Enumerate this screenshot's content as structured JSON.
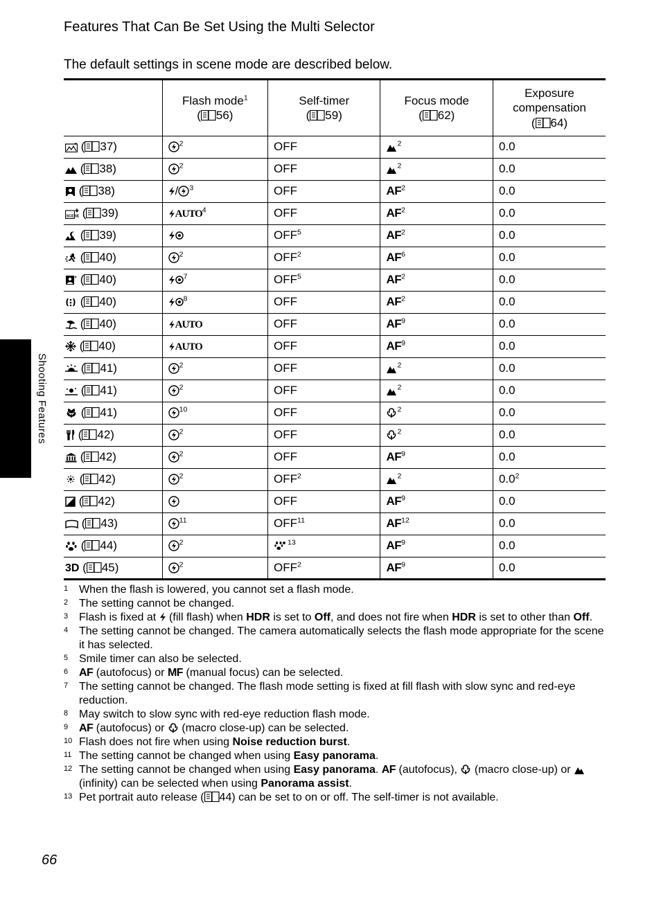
{
  "section_title": "Features That Can Be Set Using the Multi Selector",
  "intro": "The default settings in scene mode are described below.",
  "sidebar_label": "Shooting Features",
  "page_number": "66",
  "page_icon_svg": "<svg class='page-icon' width='22' height='15' viewBox='0 0 22 15'><rect x='0.5' y='0.5' width='10' height='14' fill='none' stroke='#000' stroke-width='1.2'/><rect x='11' y='0.5' width='10' height='14' fill='none' stroke='#000' stroke-width='1.2'/><line x1='3' y1='4' x2='8' y2='4' stroke='#000'/><line x1='3' y1='7' x2='8' y2='7' stroke='#000'/><line x1='3' y1='10' x2='8' y2='10' stroke='#000'/></svg>",
  "icons": {
    "auto_flash_circle": "<svg class='icon' width='16' height='16' viewBox='0 0 16 16'><circle cx='8' cy='8' r='7' fill='none' stroke='#000' stroke-width='1.4'/><path d='M9 3 L5 9 L8 9 L7 13 L11 7 L8 7 Z' fill='#000'/></svg>",
    "bolt": "<svg class='icon' width='10' height='16' viewBox='0 0 10 16'><path d='M7 1 L1 9 L5 9 L3 15 L9 7 L5 7 Z' fill='#000'/></svg>",
    "bolt_auto": "<span class='ser' style='font-size:15px;letter-spacing:-1px;'><svg class='icon' width='10' height='15' viewBox='0 0 10 16'><path d='M7 1 L1 9 L5 9 L3 15 L9 7 L5 7 Z' fill='#000'/></svg>AUTO</span>",
    "bolt_eye": "<svg class='icon' width='22' height='16' viewBox='0 0 22 16'><path d='M7 1 L1 9 L5 9 L3 15 L9 7 L5 7 Z' fill='#000'/><circle cx='16' cy='8' r='5' fill='none' stroke='#000' stroke-width='1.5'/><circle cx='16' cy='8' r='2' fill='#000'/></svg>",
    "mountain": "<svg class='icon' width='16' height='14' viewBox='0 0 16 14'><path d='M1 13 L6 3 L9 8 L11 5 L15 13 Z' fill='#000'/></svg>",
    "macro": "<svg class='icon' width='16' height='16' viewBox='0 0 16 16'><path d='M8 2 C5 2 4 5 5 8 M8 2 C11 2 12 5 11 8 M3 6 C1 10 5 13 8 13 M13 6 C15 10 11 13 8 13 M8 9 L8 15' stroke='#000' stroke-width='1.6' fill='none'/></svg>",
    "clock": "<svg class='icon' width='16' height='16' viewBox='0 0 16 16'><circle cx='8' cy='9' r='5.5' fill='none' stroke='#000' stroke-width='1.4'/><path d='M8 9 L8 6 M8 9 L10 10' stroke='#000' stroke-width='1.4'/><path d='M5 2 L7 1 M11 2 L9 1' stroke='#000' stroke-width='1.4'/></svg>",
    "scene_auto": "<svg class='icon' width='18' height='15' viewBox='0 0 18 15'><rect x='0.5' y='3' width='17' height='11.5' fill='none' stroke='#000' stroke-width='1.2'/><path d='M2 13 L6 7 L9 11 L12 6 L16 13' fill='none' stroke='#000' stroke-width='1.2'/><path d='M14 1.5 L15 3 L16.5 1.5' fill='none' stroke='#000' stroke-width='1.2'/></svg>",
    "portrait": "<svg class='icon' width='15' height='15' viewBox='0 0 15 15'><rect x='1' y='1' width='13' height='13' fill='#000'/><circle cx='7.5' cy='6' r='2.5' fill='#fff'/><path d='M3 14 C3 10 12 10 12 14 Z' fill='#fff'/></svg>",
    "landscape": "<svg class='icon' width='17' height='14' viewBox='0 0 17 14'><path d='M0 13 L5 4 L8 9 L11 3 L17 13 Z' fill='#000'/></svg>",
    "scene_pick": "<svg class='icon' width='20' height='15' viewBox='0 0 20 15'><rect x='0.5' y='3' width='13' height='11.5' fill='none' stroke='#000' stroke-width='1.1'/><text x='1.5' y='12.5' font-size='5.5' font-family='Arial' font-weight='bold'>SCENE</text><path d='M15 2 L17 5 L19 2' fill='none' stroke='#000' stroke-width='1.3'/><line x1='17' y1='5' x2='17' y2='0' stroke='#000' stroke-width='1.3'/></svg>",
    "night_land": "<svg class='icon' width='17' height='15' viewBox='0 0 17 15'><path d='M13 2 A4 4 0 1 0 13 9 A3 3 0 1 1 13 2 Z' fill='#000'/><path d='M0 14 L4 8 L7 12 L10 7 L15 14 Z' fill='#000'/></svg>",
    "sports": "<svg class='icon' width='17' height='15' viewBox='0 0 17 15'><circle cx='11' cy='3' r='2' fill='#000'/><path d='M7 5 L12 5 L14 9 M10 5 L8 10 L5 11 M10 8 L13 13' stroke='#000' stroke-width='1.8' fill='none'/><path d='M1 6 L4 6 M0 9 L3 9 M1 12 L4 12' stroke='#000' stroke-width='1.3'/></svg>",
    "night_port": "<svg class='icon' width='17' height='15' viewBox='0 0 17 15'><rect x='1' y='1' width='12' height='13' fill='#000'/><circle cx='7' cy='6' r='2.2' fill='#fff'/><path d='M3 13 C3 9.5 11 9.5 11 13 Z' fill='#fff'/><path d='M15 1 L15.6 2.5 L17 3 L15.6 3.5 L15 5 L14.4 3.5 L13 3 L14.4 2.5 Z' fill='#000'/></svg>",
    "party": "<svg class='icon' width='17' height='15' viewBox='0 0 17 15'><path d='M3 2 C 1 5 1 10 3 13 L5 13 C 3 10 3 5 5 2 Z M13 2 C 15 5 15 10 13 13 L11 13 C 13 10 13 5 11 2 Z' fill='#000'/><circle cx='8' cy='4' r='1.3' fill='#000'/><circle cx='8' cy='8' r='1.3' fill='#000'/><circle cx='8' cy='12' r='1.3' fill='#000'/></svg>",
    "beach": "<svg class='icon' width='17' height='15' viewBox='0 0 17 15'><path d='M2 4 C6 0 12 2 14 6 L8 7 Z' fill='#000'/><line x1='8' y1='6' x2='6' y2='13' stroke='#000' stroke-width='1.5'/><path d='M1 13 C4 11 7 15 10 13 C13 11 16 14 17 13' stroke='#000' stroke-width='1.5' fill='none'/></svg>",
    "snow": "<svg class='icon' width='16' height='16' viewBox='0 0 16 16'><g stroke='#000' stroke-width='1.4'><line x1='8' y1='1' x2='8' y2='15'/><line x1='1' y1='8' x2='15' y2='8'/><line x1='3' y1='3' x2='13' y2='13'/><line x1='13' y1='3' x2='3' y2='13'/></g><path d='M6 3 L8 1 L10 3 M6 13 L8 15 L10 13 M3 6 L1 8 L3 10 M13 6 L15 8 L13 10' stroke='#000' stroke-width='1.2' fill='none'/></svg>",
    "sunset": "<svg class='icon' width='18' height='14' viewBox='0 0 18 14'><path d='M4 10 A5 5 0 0 1 14 10 Z' fill='#000'/><line x1='0' y1='10' x2='18' y2='10' stroke='#000' stroke-width='1.5'/><g stroke='#000' stroke-width='1.4'><line x1='9' y1='0' x2='9' y2='2.5'/><line x1='3' y1='2' x2='4.8' y2='3.8'/><line x1='15' y1='2' x2='13.2' y2='3.8'/></g></svg>",
    "dusk": "<svg class='icon' width='18' height='14' viewBox='0 0 18 14'><circle cx='9' cy='6' r='3' fill='#000'/><line x1='0' y1='12' x2='18' y2='12' stroke='#000' stroke-width='1.5'/><circle cx='3' cy='4' r='1' fill='#000'/><circle cx='15' cy='3' r='1' fill='#000'/></svg>",
    "closeup": "<svg class='icon' width='18' height='15' viewBox='0 0 18 15'><path d='M9 7 C6 7 4 5 5 2 C7 3 9 4 9 7 C9 4 11 3 13 2 C14 5 12 7 9 7 M4 6 C2 10 6 12 9 12 M14 6 C16 10 12 12 9 12 M9 9 L9 14' stroke='#000' stroke-width='1.6' fill='#000'/></svg>",
    "food": "<svg class='icon' width='14' height='16' viewBox='0 0 14 16'><path d='M3 1 L3 6 M5 1 L5 6 M7 1 L7 6 M3 6 L7 6 L6 8 L6 15 L4 15 L4 8 Z' stroke='#000' stroke-width='1.3' fill='#000'/><path d='M11 1 L11 15 M11 1 C13 2 13 7 11 8' stroke='#000' stroke-width='1.6' fill='none'/></svg>",
    "museum": "<svg class='icon' width='17' height='15' viewBox='0 0 17 15'><path d='M1 5 L8.5 1 L16 5 L1 5' fill='#000'/><g stroke='#000' stroke-width='1.8'><line x1='3' y1='6' x2='3' y2='12'/><line x1='6.5' y1='6' x2='6.5' y2='12'/><line x1='10.5' y1='6' x2='10.5' y2='12'/><line x1='14' y1='6' x2='14' y2='12'/></g><rect x='0.5' y='12.5' width='16' height='2' fill='#000'/></svg>",
    "fireworks": "<svg class='icon' width='16' height='16' viewBox='0 0 16 16'><g stroke='#000' stroke-width='1.3' stroke-dasharray='2 1.5'><line x1='8' y1='8' x2='8' y2='1'/><line x1='8' y1='8' x2='8' y2='15'/><line x1='8' y1='8' x2='1' y2='8'/><line x1='8' y1='8' x2='15' y2='8'/><line x1='8' y1='8' x2='3' y2='3'/><line x1='8' y1='8' x2='13' y2='3'/><line x1='8' y1='8' x2='3' y2='13'/><line x1='8' y1='8' x2='13' y2='13'/></g></svg>",
    "bw_copy": "<svg class='icon' width='15' height='15' viewBox='0 0 15 15'><rect x='1' y='1' width='13' height='13' fill='none' stroke='#000' stroke-width='1.5'/><path d='M1 14 L14 1 L14 14 Z' fill='#000'/></svg>",
    "panorama": "<svg class='icon' width='19' height='14' viewBox='0 0 19 14'><path d='M1 3 C5 1 14 1 18 3 L18 12 C14 10 5 10 1 12 Z' fill='none' stroke='#000' stroke-width='1.5'/></svg>",
    "pet": "<svg class='icon' width='18' height='15' viewBox='0 0 18 15'><ellipse cx='5' cy='3.5' rx='1.8' ry='2.3' fill='#000'/><ellipse cx='12' cy='3.5' rx='1.8' ry='2.3' fill='#000'/><ellipse cx='2.5' cy='8' rx='1.5' ry='2' fill='#000'/><ellipse cx='15' cy='8' rx='1.5' ry='2' fill='#000'/><path d='M5 12 C5 8 12 8 12 12 C12 15 5 15 5 12' fill='#000'/></svg>",
    "pet_release": "<svg class='icon' width='20' height='16' viewBox='0 0 20 16'><ellipse cx='4.5' cy='4' rx='1.5' ry='2' fill='#000'/><ellipse cx='10' cy='4' rx='1.5' ry='2' fill='#000'/><ellipse cx='2.5' cy='8' rx='1.2' ry='1.7' fill='#000'/><ellipse cx='12' cy='8' rx='1.2' ry='1.7' fill='#000'/><path d='M4.5 12 C4.5 8.5 10 8.5 10 12 C10 14.5 4.5 14.5 4.5 12' fill='#000'/><path d='M15 2 L15 6 M13 4 L17 4 M13.5 2.5 L16.5 5.5 M16.5 2.5 L13.5 5.5' stroke='#000' stroke-width='1'/></svg>",
    "threed": "<span class='sans' style='font-weight:700;font-size:16px;'>3D</span>"
  },
  "headers": {
    "col1": "",
    "flash": {
      "label": "Flash mode",
      "sup": "1",
      "ref": "56"
    },
    "timer": {
      "label": "Self-timer",
      "ref": "59"
    },
    "focus": {
      "label": "Focus mode",
      "ref": "62"
    },
    "exp": {
      "label": "Exposure compensation",
      "ref": "64"
    }
  },
  "rows": [
    {
      "mode_icon": "scene_auto",
      "ref": "37",
      "flash": {
        "icon": "auto_flash_circle",
        "sup": "2"
      },
      "timer": {
        "text": "OFF"
      },
      "focus": {
        "icon": "mountain",
        "sup": "2"
      },
      "exp": "0.0"
    },
    {
      "mode_icon": "landscape",
      "ref": "38",
      "flash": {
        "icon": "auto_flash_circle",
        "sup": "2"
      },
      "timer": {
        "text": "OFF"
      },
      "focus": {
        "icon": "mountain",
        "sup": "2"
      },
      "exp": "0.0"
    },
    {
      "mode_icon": "portrait",
      "ref": "38",
      "flash": {
        "html": "bolt",
        "extra": "/",
        "icon2": "auto_flash_circle",
        "sup": "3"
      },
      "timer": {
        "text": "OFF"
      },
      "focus": {
        "af": true,
        "sup": "2"
      },
      "exp": "0.0"
    },
    {
      "mode_icon": "scene_pick",
      "ref": "39",
      "flash": {
        "icon": "bolt_auto",
        "sup": "4"
      },
      "timer": {
        "text": "OFF"
      },
      "focus": {
        "af": true,
        "sup": "2"
      },
      "exp": "0.0"
    },
    {
      "mode_icon": "night_land",
      "ref": "39",
      "flash": {
        "icon": "bolt_eye"
      },
      "timer": {
        "text": "OFF",
        "sup": "5"
      },
      "focus": {
        "af": true,
        "sup": "2"
      },
      "exp": "0.0"
    },
    {
      "mode_icon": "sports",
      "ref": "40",
      "flash": {
        "icon": "auto_flash_circle",
        "sup": "2"
      },
      "timer": {
        "text": "OFF",
        "sup": "2"
      },
      "focus": {
        "af": true,
        "sup": "6"
      },
      "exp": "0.0"
    },
    {
      "mode_icon": "night_port",
      "ref": "40",
      "flash": {
        "icon": "bolt_eye",
        "sup": "7"
      },
      "timer": {
        "text": "OFF",
        "sup": "5"
      },
      "focus": {
        "af": true,
        "sup": "2"
      },
      "exp": "0.0"
    },
    {
      "mode_icon": "party",
      "ref": "40",
      "flash": {
        "icon": "bolt_eye",
        "sup": "8"
      },
      "timer": {
        "text": "OFF"
      },
      "focus": {
        "af": true,
        "sup": "2"
      },
      "exp": "0.0"
    },
    {
      "mode_icon": "beach",
      "ref": "40",
      "flash": {
        "icon": "bolt_auto"
      },
      "timer": {
        "text": "OFF"
      },
      "focus": {
        "af": true,
        "sup": "9"
      },
      "exp": "0.0"
    },
    {
      "mode_icon": "snow",
      "ref": "40",
      "flash": {
        "icon": "bolt_auto"
      },
      "timer": {
        "text": "OFF"
      },
      "focus": {
        "af": true,
        "sup": "9"
      },
      "exp": "0.0"
    },
    {
      "mode_icon": "sunset",
      "ref": "41",
      "flash": {
        "icon": "auto_flash_circle",
        "sup": "2"
      },
      "timer": {
        "text": "OFF"
      },
      "focus": {
        "icon": "mountain",
        "sup": "2"
      },
      "exp": "0.0"
    },
    {
      "mode_icon": "dusk",
      "ref": "41",
      "flash": {
        "icon": "auto_flash_circle",
        "sup": "2"
      },
      "timer": {
        "text": "OFF"
      },
      "focus": {
        "icon": "mountain",
        "sup": "2"
      },
      "exp": "0.0"
    },
    {
      "mode_icon": "closeup",
      "ref": "41",
      "flash": {
        "icon": "auto_flash_circle",
        "sup": "10"
      },
      "timer": {
        "text": "OFF"
      },
      "focus": {
        "icon": "macro",
        "sup": "2"
      },
      "exp": "0.0"
    },
    {
      "mode_icon": "food",
      "ref": "42",
      "flash": {
        "icon": "auto_flash_circle",
        "sup": "2"
      },
      "timer": {
        "text": "OFF"
      },
      "focus": {
        "icon": "macro",
        "sup": "2"
      },
      "exp": "0.0"
    },
    {
      "mode_icon": "museum",
      "ref": "42",
      "underline": true,
      "flash": {
        "icon": "auto_flash_circle",
        "sup": "2"
      },
      "timer": {
        "text": "OFF"
      },
      "focus": {
        "af": true,
        "sup": "9"
      },
      "exp": "0.0"
    },
    {
      "mode_icon": "fireworks",
      "ref": "42",
      "flash": {
        "icon": "auto_flash_circle",
        "sup": "2"
      },
      "timer": {
        "text": "OFF",
        "sup": "2"
      },
      "focus": {
        "icon": "mountain",
        "sup": "2"
      },
      "exp": "0.0",
      "exp_sup": "2"
    },
    {
      "mode_icon": "bw_copy",
      "ref": "42",
      "flash": {
        "icon": "auto_flash_circle"
      },
      "timer": {
        "text": "OFF"
      },
      "focus": {
        "af": true,
        "sup": "9"
      },
      "exp": "0.0"
    },
    {
      "mode_icon": "panorama",
      "ref": "43",
      "flash": {
        "icon": "auto_flash_circle",
        "sup": "11"
      },
      "timer": {
        "text": "OFF",
        "sup": "11"
      },
      "focus": {
        "af": true,
        "sup": "12"
      },
      "exp": "0.0"
    },
    {
      "mode_icon": "pet",
      "ref": "44",
      "flash": {
        "icon": "auto_flash_circle",
        "sup": "2"
      },
      "timer": {
        "icon": "pet_release",
        "sup": "13"
      },
      "focus": {
        "af": true,
        "sup": "9"
      },
      "exp": "0.0"
    },
    {
      "mode_icon": "threed",
      "ref": "45",
      "flash": {
        "icon": "auto_flash_circle",
        "sup": "2"
      },
      "timer": {
        "text": "OFF",
        "sup": "2"
      },
      "focus": {
        "af": true,
        "sup": "9"
      },
      "exp": "0.0"
    }
  ],
  "footnotes": [
    {
      "n": "1",
      "html": "When the flash is lowered, you cannot set a flash mode."
    },
    {
      "n": "2",
      "html": "The setting cannot be changed."
    },
    {
      "n": "3",
      "html": "Flash is fixed at {bolt} (fill flash) when <b>HDR</b> is set to <b>Off</b>, and does not fire when <b>HDR</b> is set to other than <b>Off</b>."
    },
    {
      "n": "4",
      "html": "The setting cannot be changed. The camera automatically selects the flash mode appropriate for the scene it has selected."
    },
    {
      "n": "5",
      "html": "Smile timer can also be selected."
    },
    {
      "n": "6",
      "html": "<span class='af'>AF</span> (autofocus) or <span class='af'>MF</span> (manual focus) can be selected."
    },
    {
      "n": "7",
      "html": "The setting cannot be changed. The flash mode setting is fixed at fill flash with slow sync and red-eye reduction."
    },
    {
      "n": "8",
      "html": "May switch to slow sync with red-eye reduction flash mode."
    },
    {
      "n": "9",
      "html": "<span class='af'>AF</span> (autofocus) or {macro} (macro close-up) can be selected."
    },
    {
      "n": "10",
      "html": "Flash does not fire when using <b>Noise reduction burst</b>."
    },
    {
      "n": "11",
      "html": "The setting cannot be changed when using <b>Easy panorama</b>."
    },
    {
      "n": "12",
      "html": "The setting cannot be changed when using <b>Easy panorama</b>. <span class='af'>AF</span> (autofocus), {macro} (macro close-up) or {mountain} (infinity) can be selected when using <b>Panorama assist</b>."
    },
    {
      "n": "13",
      "html": "Pet portrait auto release ({page}44) can be set to on or off. The self-timer is not available."
    }
  ]
}
